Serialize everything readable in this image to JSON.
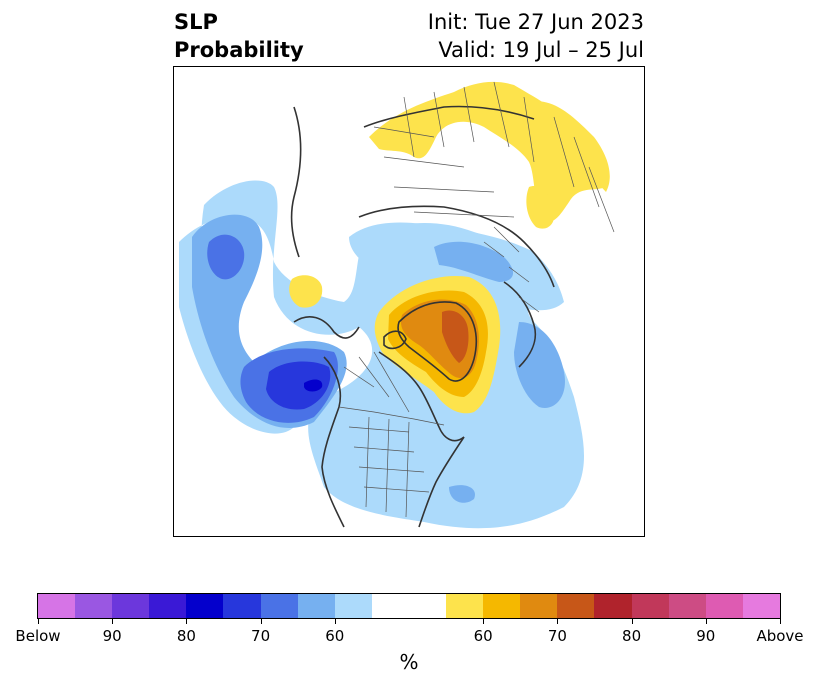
{
  "header": {
    "title_line1": "SLP",
    "title_line2": "Probability",
    "init_text": "Init: Tue 27 Jun 2023",
    "valid_text": "Valid: 19 Jul – 25 Jul"
  },
  "colorbar": {
    "unit": "%",
    "colors": [
      "#d674e6",
      "#9a57e2",
      "#6c37dc",
      "#3a19d6",
      "#0400cc",
      "#2737dc",
      "#4a72e6",
      "#76b0f0",
      "#acdafb",
      "#ffffff",
      "#ffffff",
      "#fde34c",
      "#f5b800",
      "#e08a10",
      "#c75718",
      "#b0232c",
      "#c1385a",
      "#cd4c84",
      "#de5bb2",
      "#e67adf"
    ],
    "tick_labels": [
      "Below",
      "90",
      "80",
      "70",
      "60",
      "60",
      "70",
      "80",
      "90",
      "Above"
    ]
  },
  "map": {
    "description_colors": {
      "below_light": "#acdafb",
      "below_mid": "#76b0f0",
      "below_strong": "#4a72e6",
      "below_stronger": "#2737dc",
      "below_core": "#0400cc",
      "above_light": "#fde34c",
      "above_mid": "#f5b800",
      "above_strong": "#e08a10",
      "above_core": "#c75718"
    }
  }
}
